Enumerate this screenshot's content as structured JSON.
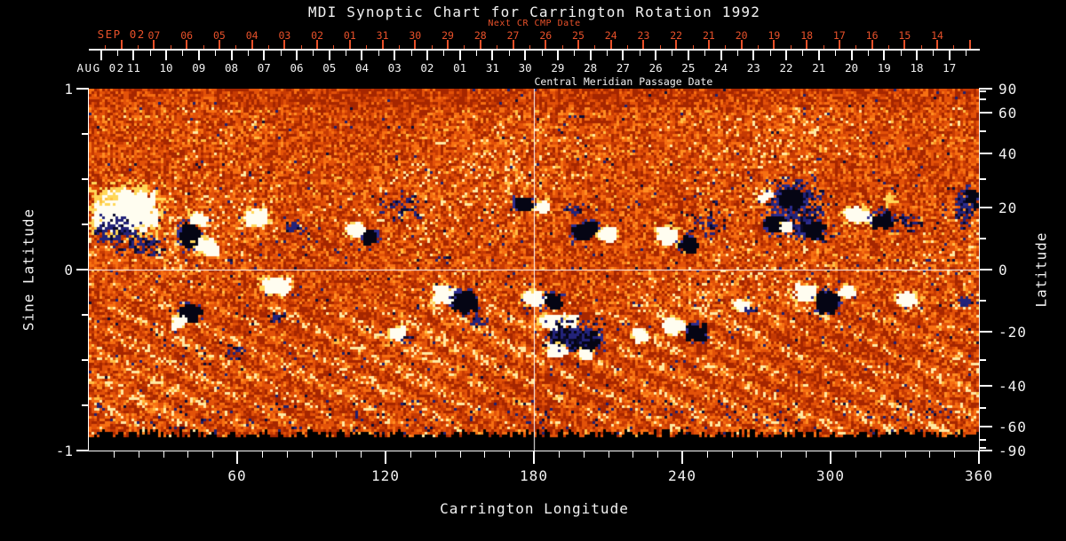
{
  "title": "MDI Synoptic Chart for Carrington Rotation 1992",
  "colors": {
    "background": "#000000",
    "text": "#f2f2f2",
    "next_cr_red": "#e8512a",
    "axis_white": "#ffffff",
    "grid_white": "#ffffff"
  },
  "top_axis": {
    "next_cr_label": "Next CR CMP Date",
    "cmp_label": "Central Meridian Passage Date",
    "red": {
      "month_label": "SEP 02",
      "labels": [
        "07",
        "06",
        "05",
        "04",
        "03",
        "02",
        "01",
        "31",
        "30",
        "29",
        "28",
        "27",
        "26",
        "25",
        "24",
        "23",
        "22",
        "21",
        "20",
        "19",
        "18",
        "17",
        "16",
        "15",
        "14"
      ]
    },
    "white": {
      "month_label": "AUG 02",
      "labels": [
        "11",
        "10",
        "09",
        "08",
        "07",
        "06",
        "05",
        "04",
        "03",
        "02",
        "01",
        "31",
        "30",
        "29",
        "28",
        "27",
        "26",
        "25",
        "24",
        "23",
        "22",
        "21",
        "20",
        "19",
        "18",
        "17"
      ]
    }
  },
  "left_axis": {
    "title": "Sine Latitude",
    "major": [
      {
        "v": 1,
        "label": "1"
      },
      {
        "v": 0,
        "label": "0"
      },
      {
        "v": -1,
        "label": "-1"
      }
    ],
    "minor": [
      0.75,
      0.5,
      0.25,
      -0.25,
      -0.5,
      -0.75
    ]
  },
  "right_axis": {
    "title": "Latitude",
    "major": [
      {
        "v": 90,
        "label": "90"
      },
      {
        "v": 60,
        "label": "60"
      },
      {
        "v": 40,
        "label": "40"
      },
      {
        "v": 20,
        "label": "20"
      },
      {
        "v": 0,
        "label": "0"
      },
      {
        "v": -20,
        "label": "-20"
      },
      {
        "v": -40,
        "label": "-40"
      },
      {
        "v": -60,
        "label": "-60"
      },
      {
        "v": -90,
        "label": "-90"
      }
    ],
    "minor": [
      80,
      70,
      50,
      30,
      10,
      -10,
      -30,
      -50,
      -70,
      -80
    ]
  },
  "bottom_axis": {
    "title": "Carrington Longitude",
    "major": [
      {
        "v": 60,
        "label": "60"
      },
      {
        "v": 120,
        "label": "120"
      },
      {
        "v": 180,
        "label": "180"
      },
      {
        "v": 240,
        "label": "240"
      },
      {
        "v": 300,
        "label": "300"
      },
      {
        "v": 360,
        "label": "360"
      }
    ],
    "minor_step_deg": 10
  },
  "chart_data": {
    "type": "heatmap",
    "title": "MDI Synoptic Chart for Carrington Rotation 1992",
    "xlabel": "Carrington Longitude",
    "x_range": [
      0,
      360
    ],
    "x_ticks": [
      60,
      120,
      180,
      240,
      300,
      360
    ],
    "y_left_label": "Sine Latitude",
    "y_left_range": [
      -1,
      1
    ],
    "y_left_ticks": [
      1,
      0,
      -1
    ],
    "y_right_label": "Latitude",
    "y_right_ticks": [
      90,
      60,
      40,
      20,
      0,
      -20,
      -40,
      -60,
      -90
    ],
    "grid_lines": {
      "longitude": 180,
      "sine_latitude": 0
    },
    "colormap": "quiet-Sun orange/red speckle; white/yellow = strong positive magnetic field, black/dark-blue = strong negative field; data gap (black) below sine latitude -0.91",
    "cmp_date_axes": {
      "current_rotation_dates": "2002 AUG 12 (left) back to JUL 17 (right)",
      "next_rotation_dates": "2002 SEP 08 (left) back to AUG 14 (right)"
    },
    "active_regions": [
      {
        "lon": 14,
        "slat": 0.34,
        "rlon": 15,
        "rslat": 0.13,
        "c": "w",
        "d": 1.0
      },
      {
        "lon": 11,
        "slat": 0.22,
        "rlon": 10.8,
        "rslat": 0.09,
        "c": "n",
        "d": 0.5
      },
      {
        "lon": 20,
        "slat": 0.14,
        "rlon": 10.8,
        "rslat": 0.07,
        "c": "n",
        "d": 0.45
      },
      {
        "lon": 7,
        "slat": 0.41,
        "rlon": 6.5,
        "rslat": 0.05,
        "c": "y",
        "d": 0.5
      },
      {
        "lon": 40,
        "slat": 0.2,
        "rlon": 4.7,
        "rslat": 0.074,
        "c": "b",
        "d": 1.1
      },
      {
        "lon": 47,
        "slat": 0.14,
        "rlon": 4.7,
        "rslat": 0.05,
        "c": "w",
        "d": 1.0
      },
      {
        "lon": 43,
        "slat": 0.29,
        "rlon": 3.6,
        "rslat": 0.035,
        "c": "w",
        "d": 0.6
      },
      {
        "lon": 67,
        "slat": 0.3,
        "rlon": 5.4,
        "rslat": 0.05,
        "c": "w",
        "d": 0.9
      },
      {
        "lon": 83,
        "slat": 0.24,
        "rlon": 4.7,
        "rslat": 0.045,
        "c": "n",
        "d": 0.6
      },
      {
        "lon": 107,
        "slat": 0.23,
        "rlon": 4.0,
        "rslat": 0.04,
        "c": "w",
        "d": 0.9
      },
      {
        "lon": 113,
        "slat": 0.19,
        "rlon": 3.6,
        "rslat": 0.04,
        "c": "b",
        "d": 0.9
      },
      {
        "lon": 126,
        "slat": 0.36,
        "rlon": 10.8,
        "rslat": 0.09,
        "c": "n",
        "d": 0.2
      },
      {
        "lon": 175,
        "slat": 0.37,
        "rlon": 4.0,
        "rslat": 0.04,
        "c": "b",
        "d": 1.0
      },
      {
        "lon": 182,
        "slat": 0.35,
        "rlon": 3.2,
        "rslat": 0.035,
        "c": "w",
        "d": 0.9
      },
      {
        "lon": 196,
        "slat": 0.34,
        "rlon": 4.3,
        "rslat": 0.04,
        "c": "n",
        "d": 0.5
      },
      {
        "lon": 200,
        "slat": 0.23,
        "rlon": 5.4,
        "rslat": 0.055,
        "c": "b",
        "d": 1.0
      },
      {
        "lon": 209,
        "slat": 0.21,
        "rlon": 4.0,
        "rslat": 0.045,
        "c": "w",
        "d": 0.9
      },
      {
        "lon": 233,
        "slat": 0.2,
        "rlon": 4.7,
        "rslat": 0.055,
        "c": "w",
        "d": 0.9
      },
      {
        "lon": 241,
        "slat": 0.15,
        "rlon": 4.0,
        "rslat": 0.045,
        "c": "b",
        "d": 0.9
      },
      {
        "lon": 251,
        "slat": 0.26,
        "rlon": 9.0,
        "rslat": 0.09,
        "c": "n",
        "d": 0.25
      },
      {
        "lon": 285,
        "slat": 0.34,
        "rlon": 14.4,
        "rslat": 0.2,
        "c": "n",
        "d": 0.55
      },
      {
        "lon": 283,
        "slat": 0.4,
        "rlon": 5.7,
        "rslat": 0.06,
        "c": "b",
        "d": 0.9
      },
      {
        "lon": 277,
        "slat": 0.26,
        "rlon": 4.7,
        "rslat": 0.055,
        "c": "b",
        "d": 0.9
      },
      {
        "lon": 292,
        "slat": 0.23,
        "rlon": 5.0,
        "rslat": 0.05,
        "c": "b",
        "d": 0.8
      },
      {
        "lon": 273,
        "slat": 0.42,
        "rlon": 2.9,
        "rslat": 0.03,
        "c": "w",
        "d": 0.7
      },
      {
        "lon": 281,
        "slat": 0.25,
        "rlon": 2.5,
        "rslat": 0.025,
        "c": "w",
        "d": 0.8
      },
      {
        "lon": 310,
        "slat": 0.31,
        "rlon": 5.4,
        "rslat": 0.05,
        "c": "w",
        "d": 1.0
      },
      {
        "lon": 320,
        "slat": 0.28,
        "rlon": 4.7,
        "rslat": 0.045,
        "c": "b",
        "d": 0.9
      },
      {
        "lon": 325,
        "slat": 0.39,
        "rlon": 4.3,
        "rslat": 0.04,
        "c": "y",
        "d": 0.5
      },
      {
        "lon": 330,
        "slat": 0.26,
        "rlon": 7.2,
        "rslat": 0.07,
        "c": "n",
        "d": 0.3
      },
      {
        "lon": 354,
        "slat": 0.35,
        "rlon": 4.3,
        "rslat": 0.13,
        "c": "n",
        "d": 0.8
      },
      {
        "lon": 356,
        "slat": 0.41,
        "rlon": 2.9,
        "rslat": 0.05,
        "c": "b",
        "d": 0.7
      },
      {
        "lon": 75,
        "slat": -0.08,
        "rlon": 6.1,
        "rslat": 0.05,
        "c": "w",
        "d": 0.9
      },
      {
        "lon": 40,
        "slat": -0.23,
        "rlon": 4.3,
        "rslat": 0.05,
        "c": "b",
        "d": 1.0
      },
      {
        "lon": 36,
        "slat": -0.28,
        "rlon": 3.2,
        "rslat": 0.035,
        "c": "w",
        "d": 0.9
      },
      {
        "lon": 75,
        "slat": -0.26,
        "rlon": 3.6,
        "rslat": 0.04,
        "c": "n",
        "d": 0.7
      },
      {
        "lon": 59,
        "slat": -0.45,
        "rlon": 4.3,
        "rslat": 0.04,
        "c": "n",
        "d": 0.6
      },
      {
        "lon": 124,
        "slat": -0.34,
        "rlon": 4.0,
        "rslat": 0.04,
        "c": "w",
        "d": 0.85
      },
      {
        "lon": 128,
        "slat": -0.37,
        "rlon": 2.9,
        "rslat": 0.03,
        "c": "n",
        "d": 0.7
      },
      {
        "lon": 143,
        "slat": -0.13,
        "rlon": 4.7,
        "rslat": 0.055,
        "c": "w",
        "d": 1.0
      },
      {
        "lon": 151,
        "slat": -0.17,
        "rlon": 5.4,
        "rslat": 0.065,
        "c": "b",
        "d": 1.1
      },
      {
        "lon": 157,
        "slat": -0.28,
        "rlon": 3.6,
        "rslat": 0.04,
        "c": "n",
        "d": 0.7
      },
      {
        "lon": 179,
        "slat": -0.15,
        "rlon": 4.7,
        "rslat": 0.045,
        "c": "w",
        "d": 0.95
      },
      {
        "lon": 187,
        "slat": -0.16,
        "rlon": 4.0,
        "rslat": 0.04,
        "c": "b",
        "d": 0.9
      },
      {
        "lon": 191,
        "slat": -0.34,
        "rlon": 5.4,
        "rslat": 0.055,
        "c": "b",
        "d": 1.1
      },
      {
        "lon": 200,
        "slat": -0.38,
        "rlon": 6.5,
        "rslat": 0.065,
        "c": "b",
        "d": 1.1
      },
      {
        "lon": 185,
        "slat": -0.28,
        "rlon": 4.3,
        "rslat": 0.045,
        "c": "w",
        "d": 1.0
      },
      {
        "lon": 194,
        "slat": -0.27,
        "rlon": 3.2,
        "rslat": 0.035,
        "c": "w",
        "d": 0.8
      },
      {
        "lon": 188,
        "slat": -0.43,
        "rlon": 4.7,
        "rslat": 0.035,
        "c": "w",
        "d": 0.9
      },
      {
        "lon": 200,
        "slat": -0.46,
        "rlon": 3.6,
        "rslat": 0.03,
        "c": "w",
        "d": 0.8
      },
      {
        "lon": 196,
        "slat": -0.36,
        "rlon": 14.4,
        "rslat": 0.11,
        "c": "n",
        "d": 0.3
      },
      {
        "lon": 222,
        "slat": -0.35,
        "rlon": 3.2,
        "rslat": 0.035,
        "c": "w",
        "d": 0.8
      },
      {
        "lon": 236,
        "slat": -0.3,
        "rlon": 4.7,
        "rslat": 0.05,
        "c": "w",
        "d": 0.95
      },
      {
        "lon": 245,
        "slat": -0.34,
        "rlon": 4.3,
        "rslat": 0.05,
        "c": "b",
        "d": 0.95
      },
      {
        "lon": 263,
        "slat": -0.19,
        "rlon": 3.2,
        "rslat": 0.035,
        "c": "w",
        "d": 0.8
      },
      {
        "lon": 267,
        "slat": -0.22,
        "rlon": 2.9,
        "rslat": 0.03,
        "c": "n",
        "d": 0.7
      },
      {
        "lon": 289,
        "slat": -0.12,
        "rlon": 5.0,
        "rslat": 0.05,
        "c": "w",
        "d": 1.0
      },
      {
        "lon": 298,
        "slat": -0.17,
        "rlon": 5.4,
        "rslat": 0.06,
        "c": "b",
        "d": 1.0
      },
      {
        "lon": 306,
        "slat": -0.11,
        "rlon": 3.2,
        "rslat": 0.035,
        "c": "w",
        "d": 0.8
      },
      {
        "lon": 330,
        "slat": -0.15,
        "rlon": 4.7,
        "rslat": 0.04,
        "c": "w",
        "d": 0.85
      },
      {
        "lon": 354,
        "slat": -0.17,
        "rlon": 4.0,
        "rslat": 0.04,
        "c": "n",
        "d": 0.8
      }
    ]
  }
}
